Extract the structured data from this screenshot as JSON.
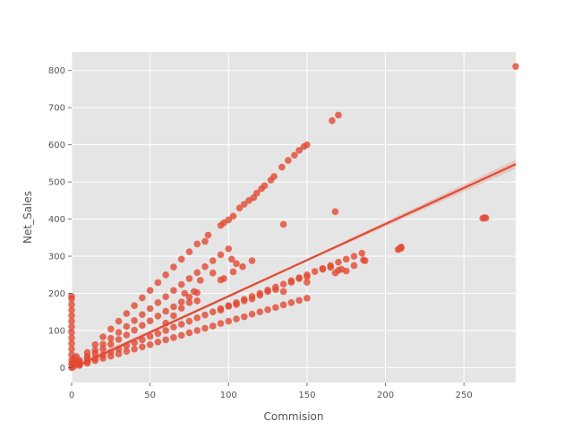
{
  "chart_data": {
    "type": "scatter",
    "title": "",
    "xlabel": "Commision",
    "ylabel": "Net_Sales",
    "xlim": [
      0,
      283
    ],
    "ylim": [
      -40,
      850
    ],
    "xticks": [
      0,
      50,
      100,
      150,
      200,
      250
    ],
    "yticks": [
      0,
      100,
      200,
      300,
      400,
      500,
      600,
      700,
      800
    ],
    "grid": true,
    "background": "#e5e5e5",
    "grid_color": "#ffffff",
    "point_color": "#e24a33",
    "line_color": "#e24a33",
    "series": [
      {
        "points": [
          [
            0,
            0
          ],
          [
            0,
            10
          ],
          [
            0,
            20
          ],
          [
            0,
            35
          ],
          [
            0,
            50
          ],
          [
            0,
            65
          ],
          [
            0,
            80
          ],
          [
            0,
            95
          ],
          [
            0,
            110
          ],
          [
            0,
            125
          ],
          [
            0,
            140
          ],
          [
            0,
            155
          ],
          [
            0,
            170
          ],
          [
            0,
            185
          ],
          [
            0,
            192
          ],
          [
            0.5,
            5
          ],
          [
            1,
            15
          ],
          [
            1.5,
            25
          ],
          [
            2,
            20
          ],
          [
            3,
            30
          ],
          [
            2,
            8
          ],
          [
            1,
            2
          ],
          [
            5,
            14
          ],
          [
            10,
            31
          ],
          [
            15,
            47
          ],
          [
            20,
            63
          ],
          [
            25,
            79
          ],
          [
            30,
            95
          ],
          [
            35,
            111
          ],
          [
            40,
            127
          ],
          [
            45,
            143
          ],
          [
            50,
            159
          ],
          [
            55,
            175
          ],
          [
            60,
            191
          ],
          [
            65,
            208
          ],
          [
            70,
            224
          ],
          [
            75,
            240
          ],
          [
            80,
            256
          ],
          [
            85,
            272
          ],
          [
            90,
            288
          ],
          [
            95,
            304
          ],
          [
            100,
            320
          ],
          [
            5,
            20
          ],
          [
            10,
            41
          ],
          [
            15,
            62
          ],
          [
            20,
            83
          ],
          [
            25,
            104
          ],
          [
            30,
            125
          ],
          [
            35,
            146
          ],
          [
            40,
            167
          ],
          [
            45,
            188
          ],
          [
            50,
            208
          ],
          [
            55,
            229
          ],
          [
            60,
            250
          ],
          [
            65,
            271
          ],
          [
            70,
            292
          ],
          [
            75,
            312
          ],
          [
            80,
            333
          ],
          [
            85,
            340
          ],
          [
            87,
            357
          ],
          [
            95,
            383
          ],
          [
            97,
            390
          ],
          [
            100,
            398
          ],
          [
            103,
            408
          ],
          [
            107,
            430
          ],
          [
            110,
            440
          ],
          [
            113,
            450
          ],
          [
            116,
            458
          ],
          [
            118,
            470
          ],
          [
            121,
            482
          ],
          [
            123,
            490
          ],
          [
            127,
            505
          ],
          [
            129,
            515
          ],
          [
            134,
            540
          ],
          [
            138,
            558
          ],
          [
            142,
            572
          ],
          [
            145,
            585
          ],
          [
            148,
            595
          ],
          [
            150,
            600
          ],
          [
            166,
            665
          ],
          [
            170,
            680
          ],
          [
            5,
            12
          ],
          [
            10,
            25
          ],
          [
            15,
            38
          ],
          [
            20,
            50
          ],
          [
            25,
            63
          ],
          [
            30,
            76
          ],
          [
            35,
            88
          ],
          [
            40,
            101
          ],
          [
            45,
            114
          ],
          [
            50,
            126
          ],
          [
            55,
            139
          ],
          [
            60,
            152
          ],
          [
            65,
            164
          ],
          [
            70,
            177
          ],
          [
            75,
            190
          ],
          [
            80,
            202
          ],
          [
            5,
            8
          ],
          [
            10,
            17
          ],
          [
            15,
            25
          ],
          [
            20,
            34
          ],
          [
            25,
            42
          ],
          [
            30,
            50
          ],
          [
            35,
            59
          ],
          [
            40,
            67
          ],
          [
            45,
            75
          ],
          [
            50,
            84
          ],
          [
            55,
            92
          ],
          [
            60,
            100
          ],
          [
            65,
            109
          ],
          [
            70,
            117
          ],
          [
            75,
            125
          ],
          [
            80,
            134
          ],
          [
            85,
            142
          ],
          [
            90,
            150
          ],
          [
            95,
            159
          ],
          [
            100,
            167
          ],
          [
            105,
            175
          ],
          [
            110,
            184
          ],
          [
            115,
            192
          ],
          [
            120,
            200
          ],
          [
            125,
            209
          ],
          [
            130,
            217
          ],
          [
            135,
            225
          ],
          [
            140,
            234
          ],
          [
            145,
            242
          ],
          [
            150,
            250
          ],
          [
            155,
            259
          ],
          [
            160,
            267
          ],
          [
            165,
            275
          ],
          [
            170,
            284
          ],
          [
            175,
            292
          ],
          [
            180,
            300
          ],
          [
            185,
            308
          ],
          [
            5,
            6
          ],
          [
            10,
            12
          ],
          [
            15,
            19
          ],
          [
            20,
            25
          ],
          [
            25,
            31
          ],
          [
            30,
            37
          ],
          [
            35,
            44
          ],
          [
            40,
            50
          ],
          [
            45,
            56
          ],
          [
            50,
            62
          ],
          [
            55,
            69
          ],
          [
            60,
            75
          ],
          [
            65,
            81
          ],
          [
            70,
            87
          ],
          [
            75,
            94
          ],
          [
            80,
            100
          ],
          [
            85,
            106
          ],
          [
            90,
            112
          ],
          [
            95,
            119
          ],
          [
            100,
            125
          ],
          [
            105,
            131
          ],
          [
            110,
            137
          ],
          [
            115,
            144
          ],
          [
            120,
            150
          ],
          [
            125,
            156
          ],
          [
            130,
            162
          ],
          [
            135,
            169
          ],
          [
            140,
            175
          ],
          [
            145,
            181
          ],
          [
            150,
            187
          ],
          [
            60,
            120
          ],
          [
            65,
            140
          ],
          [
            70,
            160
          ],
          [
            75,
            175
          ],
          [
            80,
            180
          ],
          [
            72,
            200
          ],
          [
            78,
            205
          ],
          [
            82,
            235
          ],
          [
            90,
            255
          ],
          [
            95,
            236
          ],
          [
            97,
            240
          ],
          [
            102,
            292
          ],
          [
            103,
            258
          ],
          [
            105,
            280
          ],
          [
            109,
            272
          ],
          [
            115,
            288
          ],
          [
            95,
            155
          ],
          [
            100,
            165
          ],
          [
            105,
            170
          ],
          [
            110,
            180
          ],
          [
            115,
            185
          ],
          [
            120,
            195
          ],
          [
            125,
            205
          ],
          [
            130,
            210
          ],
          [
            135,
            205
          ],
          [
            140,
            230
          ],
          [
            145,
            240
          ],
          [
            150,
            230
          ],
          [
            150,
            245
          ],
          [
            135,
            386
          ],
          [
            168,
            420
          ],
          [
            160,
            265
          ],
          [
            165,
            270
          ],
          [
            168,
            255
          ],
          [
            170,
            262
          ],
          [
            172,
            265
          ],
          [
            175,
            260
          ],
          [
            180,
            275
          ],
          [
            186,
            290
          ],
          [
            187,
            288
          ],
          [
            208,
            318
          ],
          [
            209,
            320
          ],
          [
            210,
            322
          ],
          [
            210,
            325
          ],
          [
            262,
            402
          ],
          [
            263,
            404
          ],
          [
            264,
            403
          ],
          [
            283,
            811
          ]
        ]
      }
    ],
    "regression": {
      "x": [
        0,
        283
      ],
      "y": [
        -2,
        548
      ]
    }
  }
}
